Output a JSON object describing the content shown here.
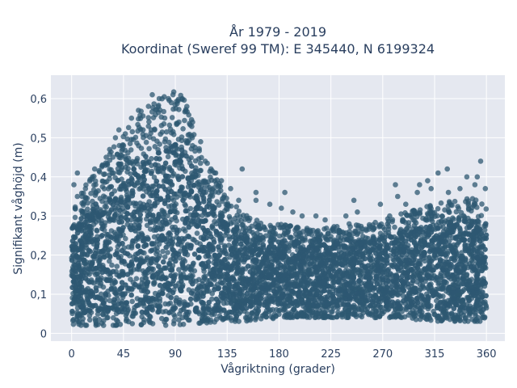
{
  "chart_data": {
    "type": "scatter",
    "title_lines": [
      "År 1979 - 2019",
      "Koordinat (Sweref 99 TM): E 345440, N 6199324"
    ],
    "xlabel": "Vågriktning (grader)",
    "ylabel": "Signifikant våghöjd (m)",
    "xlim": [
      -18,
      376
    ],
    "ylim": [
      -0.02,
      0.66
    ],
    "x_ticks": [
      0,
      45,
      90,
      135,
      180,
      225,
      270,
      315,
      360
    ],
    "x_tick_labels": [
      "0",
      "45",
      "90",
      "135",
      "180",
      "225",
      "270",
      "315",
      "360"
    ],
    "y_ticks": [
      0,
      0.1,
      0.2,
      0.3,
      0.4,
      0.5,
      0.6
    ],
    "y_tick_labels": [
      "0",
      "0,1",
      "0,2",
      "0,3",
      "0,4",
      "0,5",
      "0,6"
    ],
    "grid": true,
    "marker_color": "#2e5872",
    "plot_background": "#e5e8f0",
    "upper_envelope": [
      [
        0,
        0.33
      ],
      [
        10,
        0.37
      ],
      [
        20,
        0.41
      ],
      [
        30,
        0.46
      ],
      [
        40,
        0.5
      ],
      [
        50,
        0.53
      ],
      [
        60,
        0.57
      ],
      [
        70,
        0.59
      ],
      [
        80,
        0.61
      ],
      [
        88,
        0.63
      ],
      [
        95,
        0.61
      ],
      [
        100,
        0.59
      ],
      [
        110,
        0.5
      ],
      [
        120,
        0.43
      ],
      [
        130,
        0.38
      ],
      [
        140,
        0.33
      ],
      [
        150,
        0.31
      ],
      [
        160,
        0.29
      ],
      [
        180,
        0.28
      ],
      [
        200,
        0.27
      ],
      [
        220,
        0.27
      ],
      [
        240,
        0.28
      ],
      [
        260,
        0.28
      ],
      [
        280,
        0.3
      ],
      [
        300,
        0.32
      ],
      [
        315,
        0.33
      ],
      [
        330,
        0.34
      ],
      [
        345,
        0.35
      ],
      [
        360,
        0.34
      ]
    ],
    "lower_envelope": [
      [
        0,
        0.02
      ],
      [
        45,
        0.02
      ],
      [
        90,
        0.02
      ],
      [
        135,
        0.03
      ],
      [
        160,
        0.03
      ],
      [
        180,
        0.04
      ],
      [
        225,
        0.04
      ],
      [
        270,
        0.04
      ],
      [
        315,
        0.03
      ],
      [
        360,
        0.03
      ]
    ],
    "outliers": [
      {
        "x": 62,
        "y": 0.52
      },
      {
        "x": 69,
        "y": 0.52
      },
      {
        "x": 72,
        "y": 0.52
      },
      {
        "x": 70,
        "y": 0.61
      },
      {
        "x": 84,
        "y": 0.6
      },
      {
        "x": 88,
        "y": 0.61
      },
      {
        "x": 41,
        "y": 0.52
      },
      {
        "x": 45,
        "y": 0.48
      },
      {
        "x": 30,
        "y": 0.45
      },
      {
        "x": 20,
        "y": 0.42
      },
      {
        "x": 5,
        "y": 0.41
      },
      {
        "x": 2,
        "y": 0.38
      },
      {
        "x": 5,
        "y": 0.35
      },
      {
        "x": 12,
        "y": 0.37
      },
      {
        "x": 18,
        "y": 0.4
      },
      {
        "x": 33,
        "y": 0.47
      },
      {
        "x": 38,
        "y": 0.5
      },
      {
        "x": 52,
        "y": 0.55
      },
      {
        "x": 58,
        "y": 0.57
      },
      {
        "x": 76,
        "y": 0.6
      },
      {
        "x": 96,
        "y": 0.6
      },
      {
        "x": 100,
        "y": 0.58
      },
      {
        "x": 105,
        "y": 0.54
      },
      {
        "x": 112,
        "y": 0.49
      },
      {
        "x": 116,
        "y": 0.44
      },
      {
        "x": 125,
        "y": 0.41
      },
      {
        "x": 130,
        "y": 0.39
      },
      {
        "x": 138,
        "y": 0.37
      },
      {
        "x": 145,
        "y": 0.34
      },
      {
        "x": 148,
        "y": 0.42
      },
      {
        "x": 160,
        "y": 0.36
      },
      {
        "x": 160,
        "y": 0.34
      },
      {
        "x": 172,
        "y": 0.33
      },
      {
        "x": 185,
        "y": 0.36
      },
      {
        "x": 182,
        "y": 0.32
      },
      {
        "x": 192,
        "y": 0.31
      },
      {
        "x": 200,
        "y": 0.3
      },
      {
        "x": 212,
        "y": 0.3
      },
      {
        "x": 220,
        "y": 0.29
      },
      {
        "x": 238,
        "y": 0.3
      },
      {
        "x": 245,
        "y": 0.34
      },
      {
        "x": 248,
        "y": 0.31
      },
      {
        "x": 268,
        "y": 0.33
      },
      {
        "x": 276,
        "y": 0.3
      },
      {
        "x": 281,
        "y": 0.38
      },
      {
        "x": 300,
        "y": 0.36
      },
      {
        "x": 302,
        "y": 0.38
      },
      {
        "x": 309,
        "y": 0.39
      },
      {
        "x": 312,
        "y": 0.37
      },
      {
        "x": 318,
        "y": 0.41
      },
      {
        "x": 326,
        "y": 0.42
      },
      {
        "x": 327,
        "y": 0.36
      },
      {
        "x": 337,
        "y": 0.37
      },
      {
        "x": 343,
        "y": 0.4
      },
      {
        "x": 350,
        "y": 0.38
      },
      {
        "x": 355,
        "y": 0.44
      },
      {
        "x": 359,
        "y": 0.37
      },
      {
        "x": 352,
        "y": 0.4
      },
      {
        "x": 283,
        "y": 0.35
      },
      {
        "x": 290,
        "y": 0.33
      }
    ]
  }
}
